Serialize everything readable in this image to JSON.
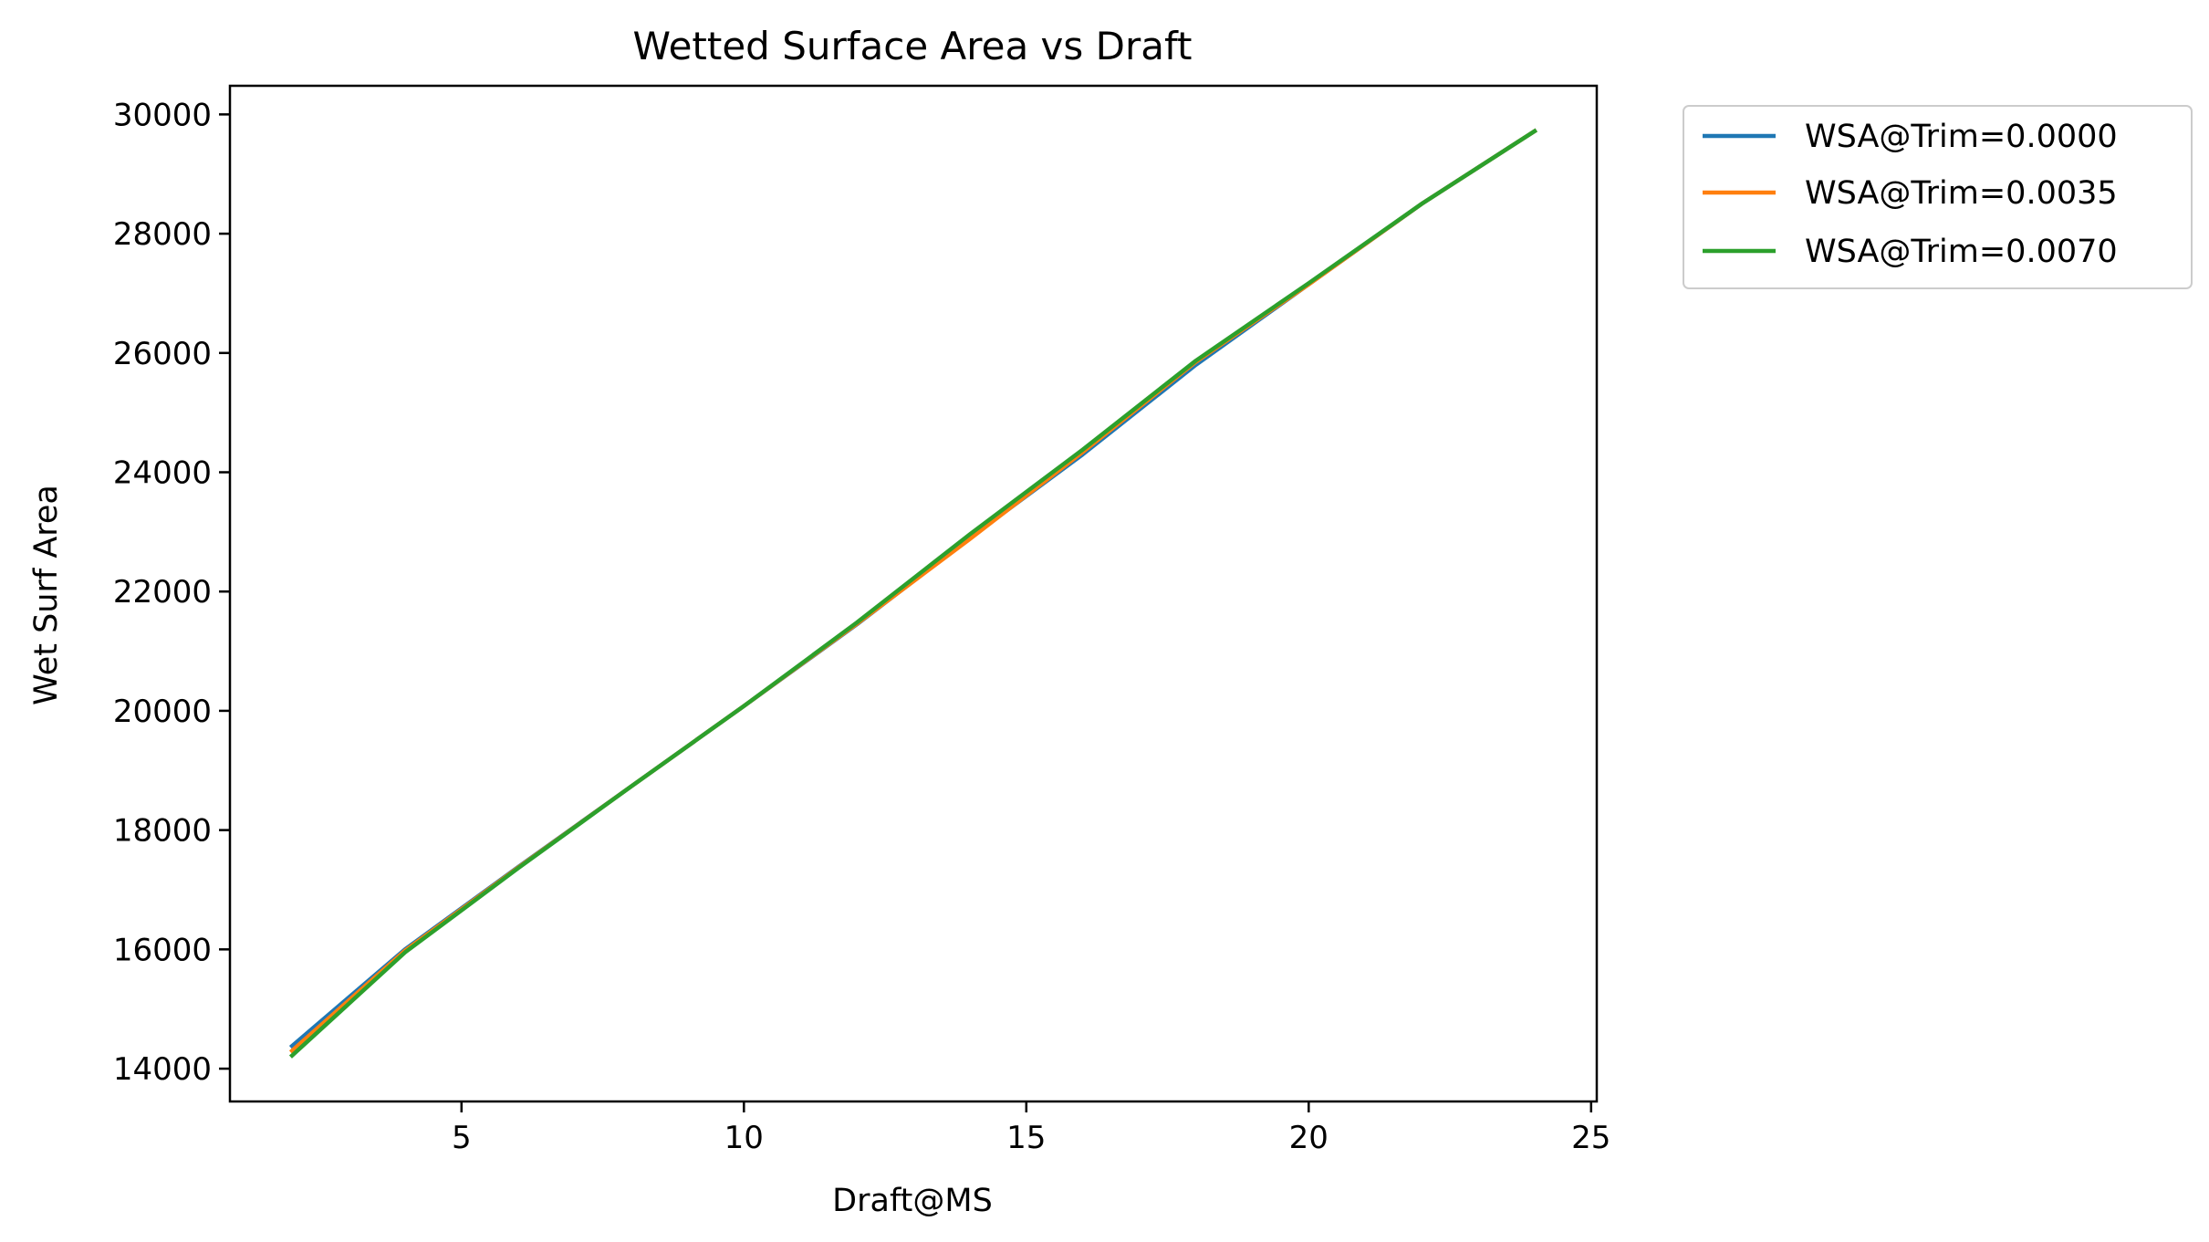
{
  "chart_data": {
    "type": "line",
    "title": "Wetted Surface Area vs Draft",
    "xlabel": "Draft@MS",
    "ylabel": "Wet Surf Area",
    "xlim": [
      0.9,
      25.1
    ],
    "ylim": [
      13450,
      30480
    ],
    "xticks": [
      5,
      10,
      15,
      20,
      25
    ],
    "yticks": [
      14000,
      16000,
      18000,
      20000,
      22000,
      24000,
      26000,
      28000,
      30000
    ],
    "grid": false,
    "legend_position": "outside-top-right",
    "x": [
      2,
      4,
      6,
      8,
      10,
      12,
      14,
      16,
      18,
      20,
      22,
      24
    ],
    "series": [
      {
        "name": "WSA@Trim=0.0000",
        "color": "#1f77b4",
        "values": [
          14380,
          16000,
          17380,
          18730,
          20080,
          21450,
          22900,
          24300,
          25800,
          27150,
          28500,
          29720
        ]
      },
      {
        "name": "WSA@Trim=0.0035",
        "color": "#ff7f0e",
        "values": [
          14300,
          15980,
          17370,
          18730,
          20080,
          21460,
          22880,
          24340,
          25850,
          27150,
          28500,
          29720
        ]
      },
      {
        "name": "WSA@Trim=0.0070",
        "color": "#2ca02c",
        "values": [
          14220,
          15950,
          17360,
          18730,
          20080,
          21480,
          22960,
          24380,
          25870,
          27170,
          28500,
          29720
        ]
      }
    ]
  }
}
